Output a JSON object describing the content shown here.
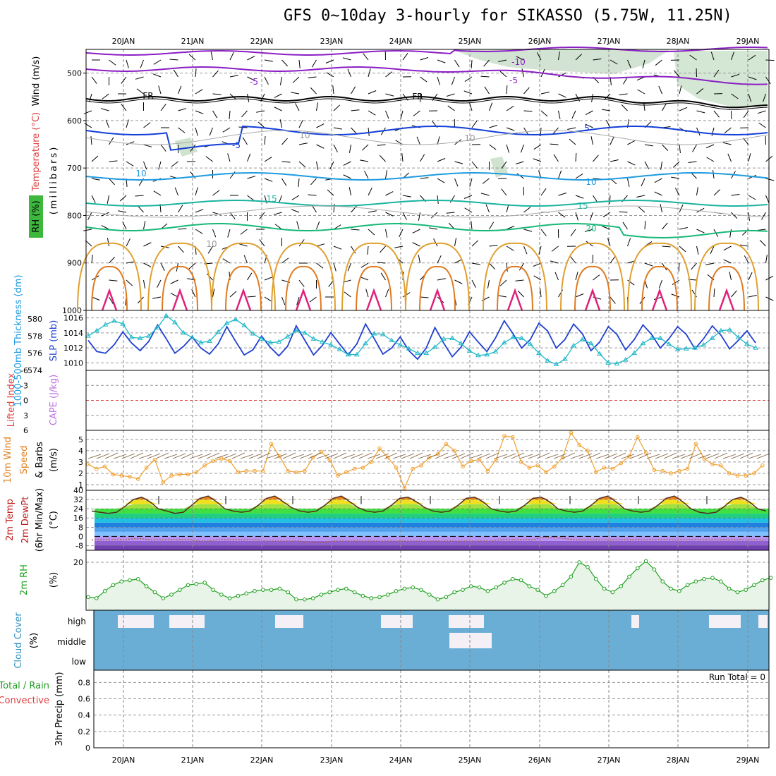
{
  "title": "GFS 0~10day 3-hourly for SIKASSO (5.75W, 11.25N)",
  "date_labels": [
    "20JAN",
    "21JAN",
    "22JAN",
    "23JAN",
    "24JAN",
    "25JAN",
    "26JAN",
    "27JAN",
    "28JAN",
    "29JAN"
  ],
  "run_total": "Run Total = 0",
  "colors": {
    "purple": "#8b1fc4",
    "black": "#000000",
    "blue": "#1440d8",
    "lightblue": "#1e9be0",
    "teal": "#1ab3a0",
    "green": "#18b878",
    "gold": "#e0a030",
    "orange": "#e07a20",
    "magenta": "#e0207a",
    "thick_line": "#2040d0",
    "slp_line": "#20b8c8",
    "wind_line": "#f0a030",
    "rh_line": "#20a020",
    "cloud": "#6aaed6"
  },
  "panels": {
    "upper": {
      "ylabel_parts": [
        "Wind (m/s)",
        "Temperature (°C)",
        "RH (%)"
      ],
      "yaxis_label": "(millibars)",
      "yticks": [
        "500",
        "600",
        "700",
        "800",
        "900",
        "1000"
      ],
      "contour_labels": [
        "-10",
        "-5",
        "-5",
        "FR",
        "FR",
        "5",
        "-5",
        "10",
        "10",
        "15",
        "15",
        "20",
        "10",
        "10",
        "10"
      ]
    },
    "thickness_slp": {
      "ylabel_left": "1000-500mb Thickness (dm)",
      "ylabel_right": "SLP (mb)",
      "yticks_left": [
        "580",
        "578",
        "576",
        "574"
      ],
      "yticks_right": [
        "1016",
        "1014",
        "1012",
        "1010"
      ]
    },
    "cape_li": {
      "ylabel_left": "Lifted Index",
      "ylabel_right": "CAPE (J/kg)",
      "yticks": [
        "-6",
        "-3",
        "0",
        "3",
        "6"
      ]
    },
    "wind10": {
      "ylabel": "10m Wind Speed & Barbs (m/s)",
      "yticks": [
        "5",
        "4",
        "3",
        "2",
        "1"
      ]
    },
    "temp2m": {
      "ylabel": "2m Temp 2m DewPt (6hr Min/Max) (°C)",
      "yticks": [
        "40",
        "32",
        "24",
        "16",
        "8",
        "0",
        "-8"
      ]
    },
    "rh2m": {
      "ylabel": "2m RH (%)",
      "yticks": [
        "20"
      ]
    },
    "cloud": {
      "ylabel": "Cloud Cover (%)",
      "levels": [
        "high",
        "middle",
        "low"
      ]
    },
    "precip": {
      "ylabel_left_1": "Total / Rain",
      "ylabel_left_2": "Convective",
      "ylabel": "3hr Precip (mm)",
      "yticks": [
        "0.8",
        "0.6",
        "0.4",
        "0.2",
        "0"
      ]
    }
  },
  "chart_data": [
    {
      "type": "line",
      "name": "1000-500mb thickness & SLP",
      "x": [
        "19JAN 15",
        "19JAN 18",
        "19JAN 21",
        "20JAN 00",
        "20JAN 03",
        "20JAN 06",
        "20JAN 09",
        "20JAN 12",
        "20JAN 15",
        "20JAN 18",
        "20JAN 21",
        "21JAN 00",
        "21JAN 03",
        "21JAN 06",
        "21JAN 09",
        "21JAN 12",
        "21JAN 15",
        "21JAN 18",
        "21JAN 21",
        "22JAN 00",
        "22JAN 03",
        "22JAN 06",
        "22JAN 09",
        "22JAN 12",
        "22JAN 15",
        "22JAN 18",
        "22JAN 21",
        "23JAN 00",
        "23JAN 03",
        "23JAN 06",
        "23JAN 09",
        "23JAN 12",
        "23JAN 15",
        "23JAN 18",
        "23JAN 21",
        "24JAN 00",
        "24JAN 03",
        "24JAN 06",
        "24JAN 09",
        "24JAN 12",
        "24JAN 15",
        "24JAN 18",
        "24JAN 21",
        "25JAN 00",
        "25JAN 03",
        "25JAN 06",
        "25JAN 09",
        "25JAN 12",
        "25JAN 15",
        "25JAN 18",
        "25JAN 21",
        "26JAN 00",
        "26JAN 03",
        "26JAN 06",
        "26JAN 09",
        "26JAN 12",
        "26JAN 15",
        "26JAN 18",
        "26JAN 21",
        "27JAN 00",
        "27JAN 03",
        "27JAN 06",
        "27JAN 09",
        "27JAN 12",
        "27JAN 15",
        "27JAN 18",
        "27JAN 21",
        "28JAN 00",
        "28JAN 03",
        "28JAN 06",
        "28JAN 09",
        "28JAN 12",
        "28JAN 15",
        "28JAN 18",
        "28JAN 21",
        "29JAN 00",
        "29JAN 03",
        "29JAN 06"
      ],
      "series": [
        {
          "name": "1000-500mb Thickness (dm)",
          "values": [
            577.5,
            576.2,
            576.0,
            577.0,
            578.5,
            577.2,
            576.3,
            577.4,
            579.3,
            577.7,
            576.0,
            576.8,
            577.9,
            576.6,
            575.9,
            577.1,
            579.1,
            577.4,
            575.8,
            576.4,
            578.0,
            576.7,
            575.7,
            576.8,
            579.2,
            577.5,
            575.8,
            576.9,
            578.4,
            577.1,
            575.8,
            577.1,
            579.4,
            577.7,
            575.9,
            576.6,
            577.9,
            576.3,
            575.3,
            576.6,
            579.0,
            577.2,
            575.6,
            576.7,
            578.5,
            577.3,
            576.2,
            577.8,
            579.8,
            578.3,
            576.6,
            577.6,
            579.5,
            578.6,
            576.6,
            577.6,
            579.4,
            578.3,
            576.3,
            577.3,
            579.1,
            578.2,
            576.4,
            577.6,
            579.3,
            578.2,
            576.6,
            577.7,
            579.1,
            578.2,
            576.5,
            577.7,
            579.2,
            578.1,
            576.5,
            577.5,
            578.6,
            577.2
          ]
        },
        {
          "name": "SLP (mb)",
          "values": [
            1013.6,
            1014.3,
            1015.1,
            1015.6,
            1015.2,
            1013.4,
            1013.3,
            1013.6,
            1014.7,
            1016.3,
            1015.4,
            1014.0,
            1013.4,
            1012.7,
            1012.9,
            1014.1,
            1015.3,
            1015.8,
            1015.0,
            1013.9,
            1013.2,
            1012.7,
            1012.8,
            1013.5,
            1014.3,
            1014.0,
            1013.2,
            1012.8,
            1012.4,
            1011.8,
            1011.1,
            1011.1,
            1012.6,
            1013.9,
            1013.8,
            1013.0,
            1012.4,
            1011.9,
            1011.3,
            1011.3,
            1012.1,
            1013.2,
            1013.3,
            1012.6,
            1011.6,
            1011.0,
            1011.1,
            1011.5,
            1012.7,
            1013.4,
            1013.3,
            1012.5,
            1011.3,
            1010.3,
            1009.8,
            1010.5,
            1012.3,
            1013.1,
            1012.6,
            1011.2,
            1010.0,
            1009.9,
            1010.4,
            1011.3,
            1012.6,
            1013.3,
            1013.3,
            1012.5,
            1011.8,
            1011.9,
            1012.0,
            1012.4,
            1013.3,
            1014.3,
            1014.4,
            1013.4,
            1012.5,
            1012.0
          ]
        }
      ],
      "ylim_left": [
        574,
        581
      ],
      "ylim_right": [
        1009,
        1017
      ]
    },
    {
      "type": "line",
      "name": "Lifted Index / CAPE",
      "series": [
        {
          "name": "Lifted Index",
          "values": []
        }
      ],
      "ylim": [
        6,
        -6
      ]
    },
    {
      "type": "line",
      "name": "10m Wind Speed",
      "series": [
        {
          "name": "10m Wind Speed (m/s)",
          "values": [
            2.8,
            2.4,
            2.6,
            1.9,
            1.8,
            1.7,
            1.5,
            2.5,
            3.2,
            1.2,
            1.8,
            1.9,
            1.9,
            2.1,
            2.7,
            3.1,
            3.3,
            3.1,
            2.1,
            2.2,
            2.2,
            2.2,
            4.6,
            3.5,
            2.2,
            2.1,
            2.2,
            3.4,
            3.9,
            3.2,
            1.8,
            2.1,
            2.4,
            2.5,
            3.0,
            4.2,
            3.4,
            2.5,
            0.7,
            2.4,
            2.7,
            3.4,
            3.7,
            4.6,
            4.0,
            2.6,
            3.1,
            3.2,
            2.2,
            3.2,
            5.3,
            5.2,
            3.0,
            2.5,
            2.7,
            2.1,
            2.6,
            3.4,
            5.6,
            4.5,
            4.0,
            2.1,
            2.5,
            2.4,
            2.9,
            3.5,
            5.2,
            3.8,
            2.3,
            2.2,
            2.0,
            2.2,
            2.4,
            4.6,
            3.3,
            2.8,
            2.7,
            2.0,
            1.8,
            1.8,
            2.0,
            2.7
          ]
        }
      ],
      "ylim": [
        0.5,
        5.8
      ]
    },
    {
      "type": "area",
      "name": "2m Temperature",
      "series": [
        {
          "name": "2m Temp (°C)",
          "values": [
            22,
            21,
            20,
            21,
            26,
            32,
            34,
            30,
            24,
            22,
            20,
            21,
            27,
            33,
            35,
            30,
            24,
            22,
            21,
            22,
            27,
            33,
            35,
            30,
            25,
            22,
            21,
            22,
            27,
            33,
            35,
            30,
            25,
            22,
            21,
            22,
            27,
            33,
            34,
            30,
            25,
            22,
            21,
            22,
            27,
            33,
            34,
            30,
            24,
            22,
            21,
            22,
            27,
            33,
            34,
            30,
            24,
            22,
            21,
            22,
            27,
            33,
            35,
            30,
            24,
            22,
            21,
            22,
            27,
            33,
            35,
            30,
            24,
            21,
            20,
            21,
            26,
            32,
            34,
            30,
            24,
            22
          ]
        },
        {
          "name": "2m DewPt (°C)",
          "values": [
            -3,
            -3,
            -3,
            -3,
            -3,
            -2,
            -2,
            -3,
            -3,
            -3,
            -3,
            -3,
            -3,
            -4,
            -4,
            -3,
            -3,
            -3,
            -3,
            -3,
            -3,
            -4,
            -4,
            -4,
            -4,
            -4,
            -5,
            -5,
            -5,
            -4,
            -4,
            -4,
            -4,
            -4,
            -4,
            -4,
            -4,
            -4,
            -4,
            -4,
            -4,
            -4,
            -4,
            -4,
            -4,
            -4,
            -4,
            -4,
            -4,
            -3,
            -3,
            -3,
            -3,
            -3,
            -1,
            -1,
            -1,
            -2,
            -3,
            -3,
            -3,
            -3,
            -3,
            -3,
            -3,
            -3,
            -3,
            -3,
            -3,
            -3,
            -3,
            -3,
            -3,
            -3,
            -3,
            -3,
            -3,
            -3,
            -3,
            -3,
            -3,
            -3
          ]
        }
      ],
      "ylim": [
        -12,
        40
      ]
    },
    {
      "type": "area",
      "name": "2m RH",
      "series": [
        {
          "name": "2m RH (%)",
          "values": [
            5.5,
            5.0,
            8.0,
            10.5,
            12.0,
            12.5,
            13.0,
            10.0,
            7.5,
            5.0,
            6.5,
            8.5,
            10.5,
            11.0,
            11.5,
            8.5,
            6.5,
            5.0,
            6.0,
            7.0,
            8.0,
            8.5,
            8.5,
            9.0,
            7.5,
            4.5,
            4.5,
            5.0,
            6.5,
            7.5,
            8.5,
            9.0,
            7.5,
            6.0,
            5.0,
            5.5,
            6.5,
            8.0,
            9.0,
            9.5,
            8.5,
            6.5,
            4.5,
            5.5,
            7.5,
            8.5,
            10.0,
            9.5,
            8.0,
            9.5,
            11.5,
            13.0,
            12.5,
            10.0,
            8.5,
            6.0,
            8.0,
            10.5,
            14.0,
            20.0,
            18.0,
            13.0,
            9.0,
            7.5,
            10.0,
            14.0,
            17.5,
            20.5,
            17.0,
            12.0,
            9.0,
            8.0,
            10.5,
            12.0,
            13.0,
            13.5,
            12.0,
            9.0,
            7.5,
            8.5,
            10.5,
            12.5,
            13.5
          ]
        }
      ],
      "ylim": [
        0,
        25
      ]
    },
    {
      "type": "heatmap",
      "name": "Cloud Cover",
      "levels": [
        "high",
        "middle",
        "low"
      ],
      "note_levels": [
        "high",
        "middle",
        "low"
      ]
    },
    {
      "type": "bar",
      "name": "3hr Precip",
      "series": [
        {
          "name": "3hr Precip (mm)",
          "values": []
        }
      ],
      "ylim": [
        0,
        0.95
      ]
    }
  ]
}
